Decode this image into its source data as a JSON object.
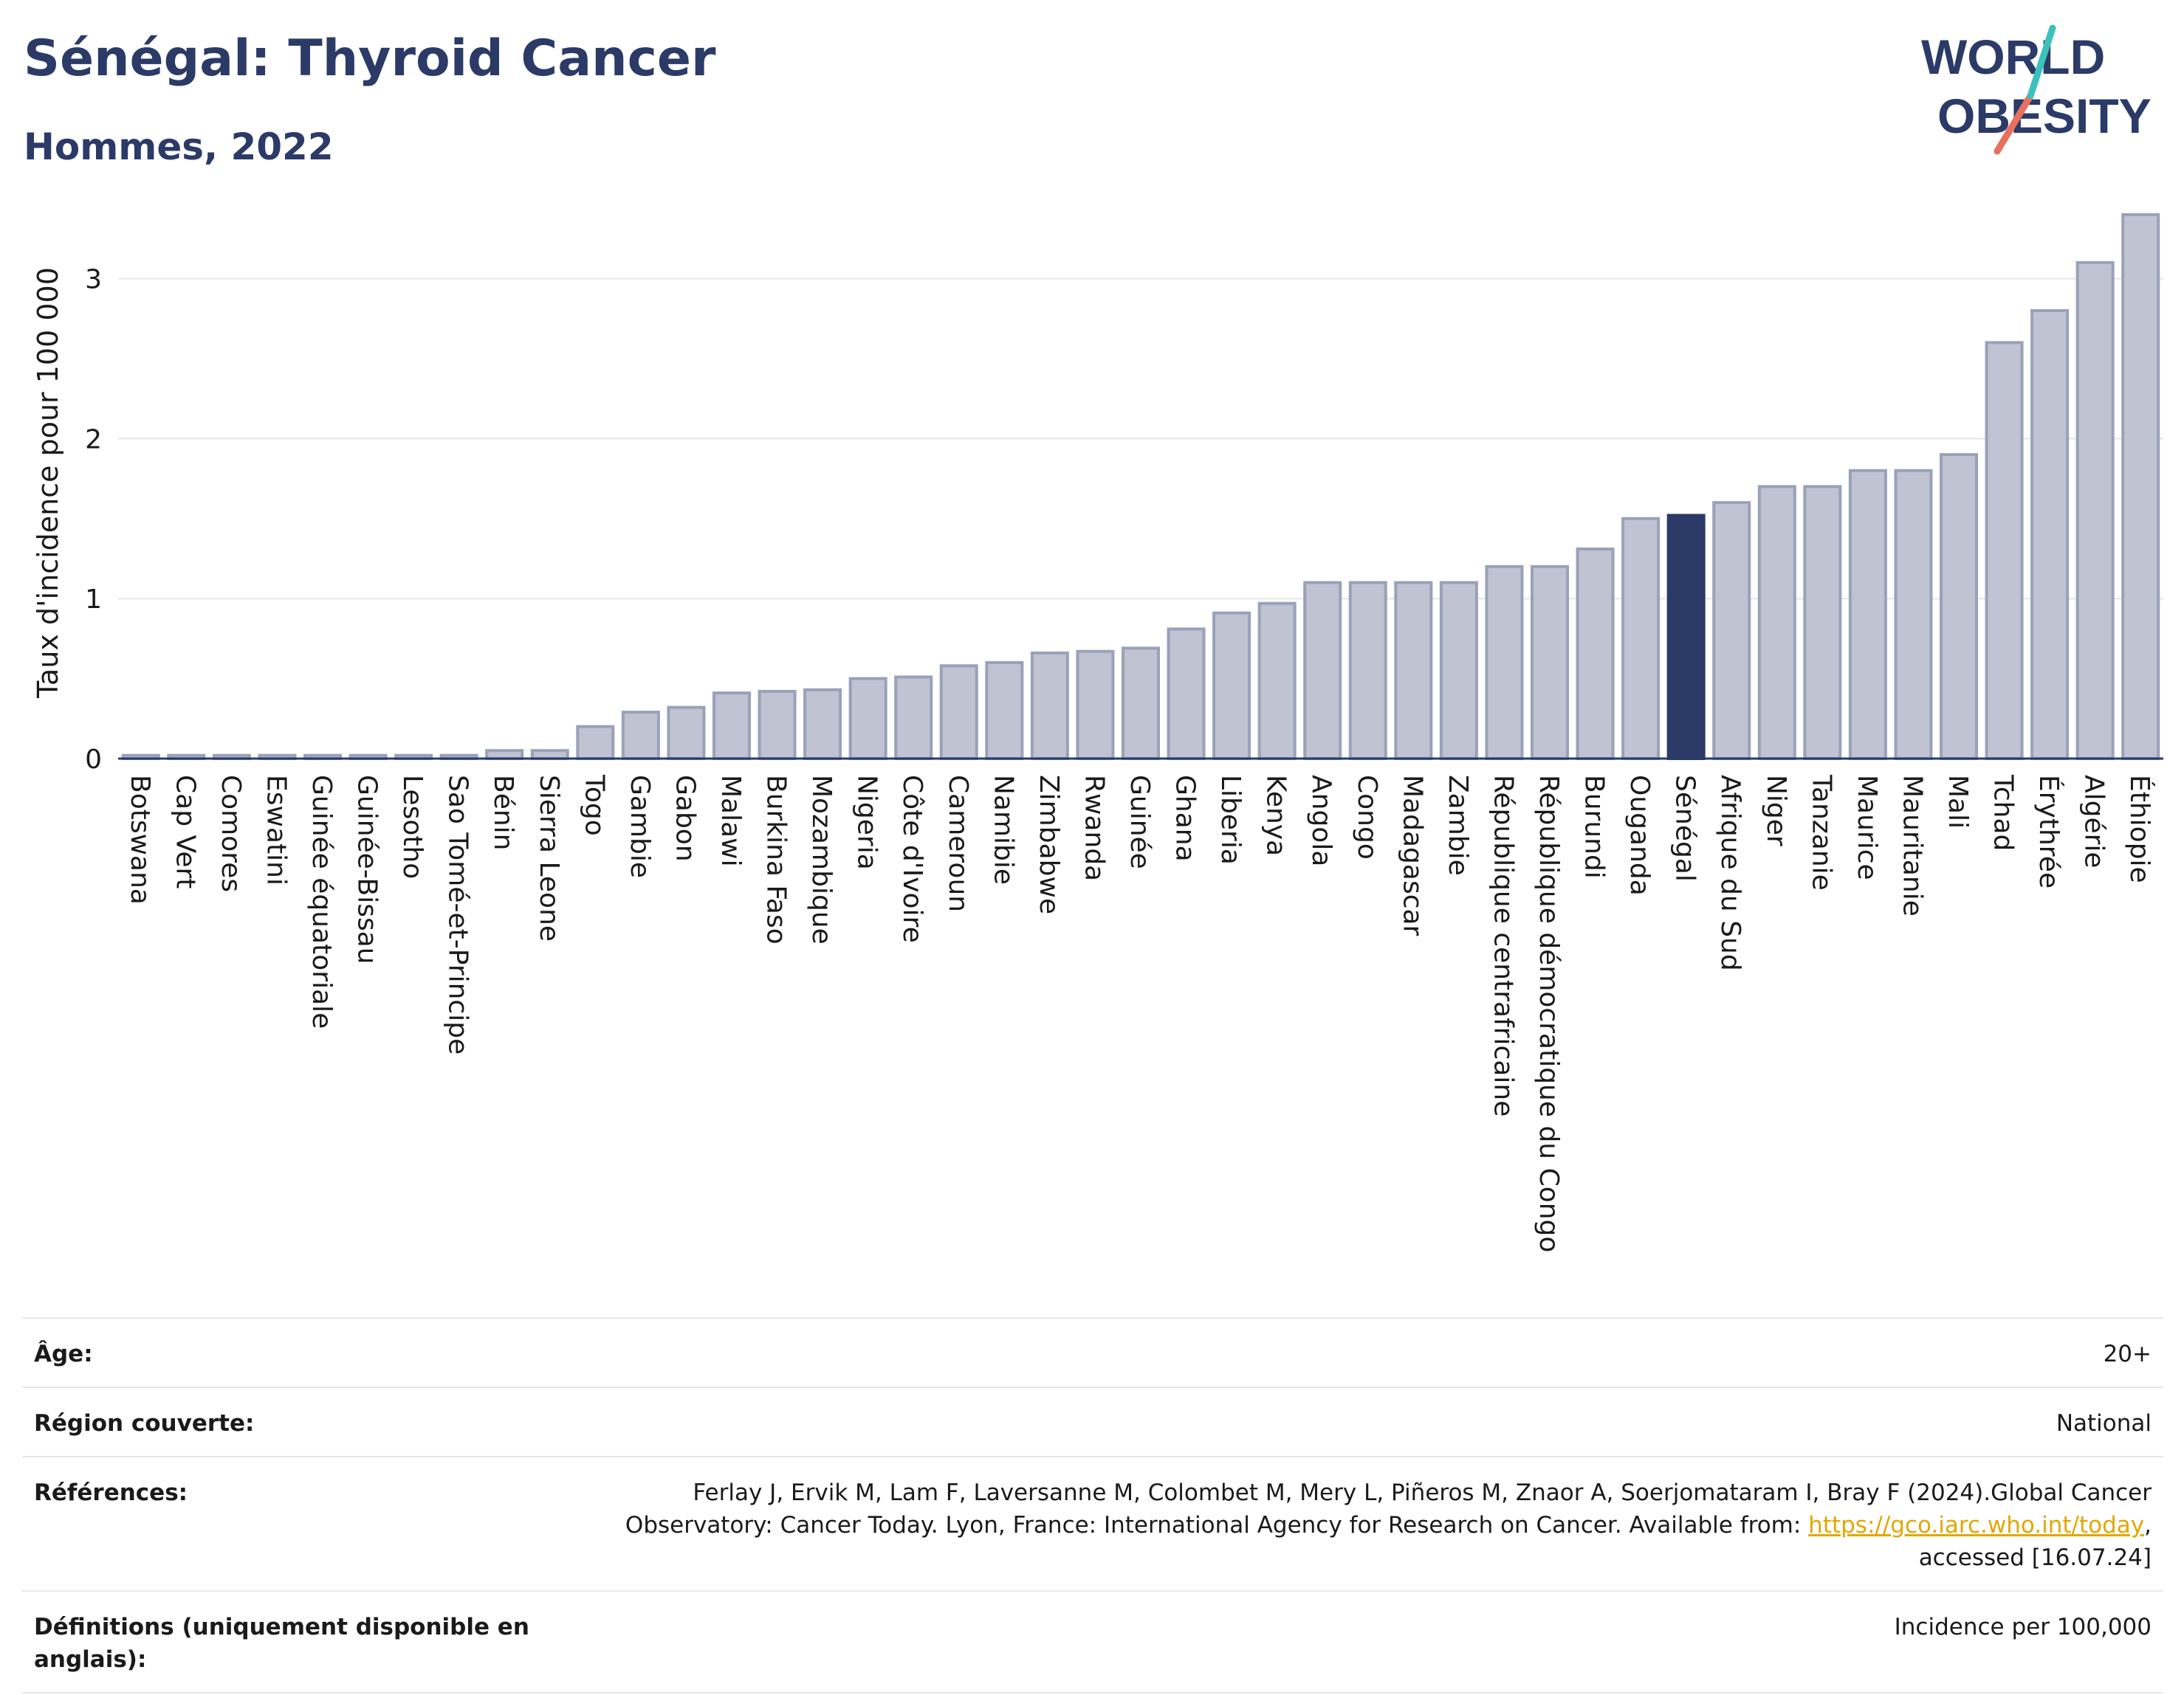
{
  "header": {
    "title": "Sénégal: Thyroid Cancer",
    "subtitle": "Hommes, 2022"
  },
  "logo": {
    "line1": "WORLD",
    "line2": "OBESITY"
  },
  "chart_data": {
    "type": "bar",
    "ylabel": "Taux d'incidence pour 100 000",
    "ylim": [
      0,
      3.45
    ],
    "yticks": [
      0,
      1,
      2,
      3
    ],
    "grid": true,
    "highlight": "Sénégal",
    "colors": {
      "bar": "#bfc3d2",
      "bar_edge": "#9aa1b8",
      "highlight": "#2b3a67"
    },
    "categories": [
      "Botswana",
      "Cap Vert",
      "Comores",
      "Eswatini",
      "Guinée équatoriale",
      "Guinée-Bissau",
      "Lesotho",
      "Sao Tomé-et-Principe",
      "Bénin",
      "Sierra Leone",
      "Togo",
      "Gambie",
      "Gabon",
      "Malawi",
      "Burkina Faso",
      "Mozambique",
      "Nigeria",
      "Côte d'Ivoire",
      "Cameroun",
      "Namibie",
      "Zimbabwe",
      "Rwanda",
      "Guinée",
      "Ghana",
      "Liberia",
      "Kenya",
      "Angola",
      "Congo",
      "Madagascar",
      "Zambie",
      "République centrafricaine",
      "République démocratique du Congo",
      "Burundi",
      "Ouganda",
      "Sénégal",
      "Afrique du Sud",
      "Niger",
      "Tanzanie",
      "Maurice",
      "Mauritanie",
      "Mali",
      "Tchad",
      "Érythrée",
      "Algérie",
      "Éthiopie"
    ],
    "values": [
      0.02,
      0.02,
      0.02,
      0.02,
      0.02,
      0.02,
      0.02,
      0.02,
      0.05,
      0.05,
      0.2,
      0.29,
      0.32,
      0.41,
      0.42,
      0.43,
      0.5,
      0.51,
      0.58,
      0.6,
      0.66,
      0.67,
      0.69,
      0.81,
      0.91,
      0.97,
      1.1,
      1.1,
      1.1,
      1.1,
      1.2,
      1.2,
      1.31,
      1.5,
      1.52,
      1.6,
      1.7,
      1.7,
      1.8,
      1.8,
      1.9,
      2.6,
      2.8,
      3.1,
      3.4
    ]
  },
  "meta": {
    "age_label": "Âge:",
    "age_value": "20+",
    "region_label": "Région couverte:",
    "region_value": "National",
    "ref_label": "Références:",
    "ref_text_1": "Ferlay J, Ervik M, Lam F, Laversanne M, Colombet M, Mery L, Piñeros M, Znaor A, Soerjomataram I, Bray F (2024).Global Cancer Observatory: Cancer Today. Lyon, France: International Agency for Research on Cancer. Available from: ",
    "ref_link": "https://gco.iarc.who.int/today",
    "ref_text_2": ", accessed [16.07.24]",
    "def_label": "Définitions (uniquement disponible en anglais):",
    "def_value": "Incidence per 100,000"
  }
}
